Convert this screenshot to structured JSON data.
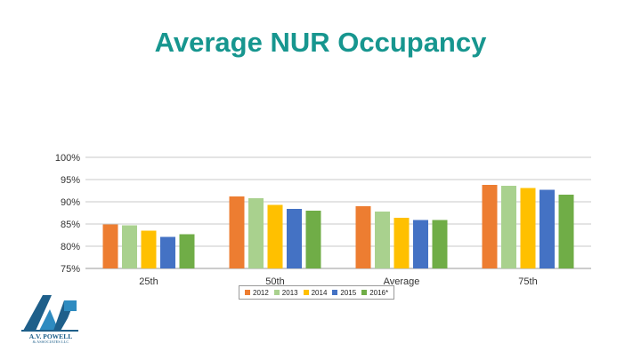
{
  "title": "Average NUR Occupancy",
  "colors": {
    "title": "#17968f",
    "series": [
      "#ed7d31",
      "#a9d18e",
      "#ffc000",
      "#4472c4",
      "#70ad47"
    ]
  },
  "chart_data": {
    "type": "bar",
    "categories": [
      "25th",
      "50th",
      "Average",
      "75th"
    ],
    "series": [
      {
        "name": "2012",
        "values": [
          84.9,
          91.2,
          89.0,
          93.8
        ]
      },
      {
        "name": "2013",
        "values": [
          84.7,
          90.8,
          87.8,
          93.6
        ]
      },
      {
        "name": "2014",
        "values": [
          83.5,
          89.3,
          86.4,
          93.1
        ]
      },
      {
        "name": "2015",
        "values": [
          82.1,
          88.4,
          85.9,
          92.7
        ]
      },
      {
        "name": "2016*",
        "values": [
          82.7,
          88.0,
          85.9,
          91.6
        ]
      }
    ],
    "yticks": [
      "75%",
      "80%",
      "85%",
      "90%",
      "95%",
      "100%"
    ],
    "ylim": [
      75,
      100
    ],
    "grid": true,
    "legend": "bottom"
  },
  "logo": {
    "name": "A.V. POWELL",
    "subtitle": "& ASSOCIATES LLC",
    "icon": "avp-logo-icon"
  }
}
